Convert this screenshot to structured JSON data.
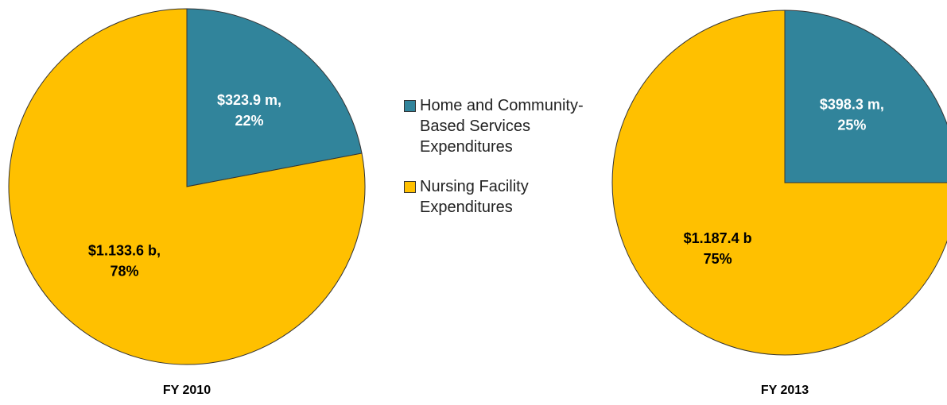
{
  "chart_data": [
    {
      "type": "pie",
      "title": "FY 2010",
      "categories": [
        "Home and Community-Based Services Expenditures",
        "Nursing Facility Expenditures"
      ],
      "values": [
        22,
        78
      ],
      "value_labels": [
        [
          "$323.9 m,",
          "22%"
        ],
        [
          "$1.133.6 b,",
          "78%"
        ]
      ],
      "colors": [
        "#31849b",
        "#ffc000"
      ]
    },
    {
      "type": "pie",
      "title": "FY 2013",
      "categories": [
        "Home and Community-Based Services Expenditures",
        "Nursing Facility Expenditures"
      ],
      "values": [
        25,
        75
      ],
      "value_labels": [
        [
          "$398.3 m,",
          "25%"
        ],
        [
          "$1.187.4 b",
          "75%"
        ]
      ],
      "colors": [
        "#31849b",
        "#ffc000"
      ]
    }
  ]
}
